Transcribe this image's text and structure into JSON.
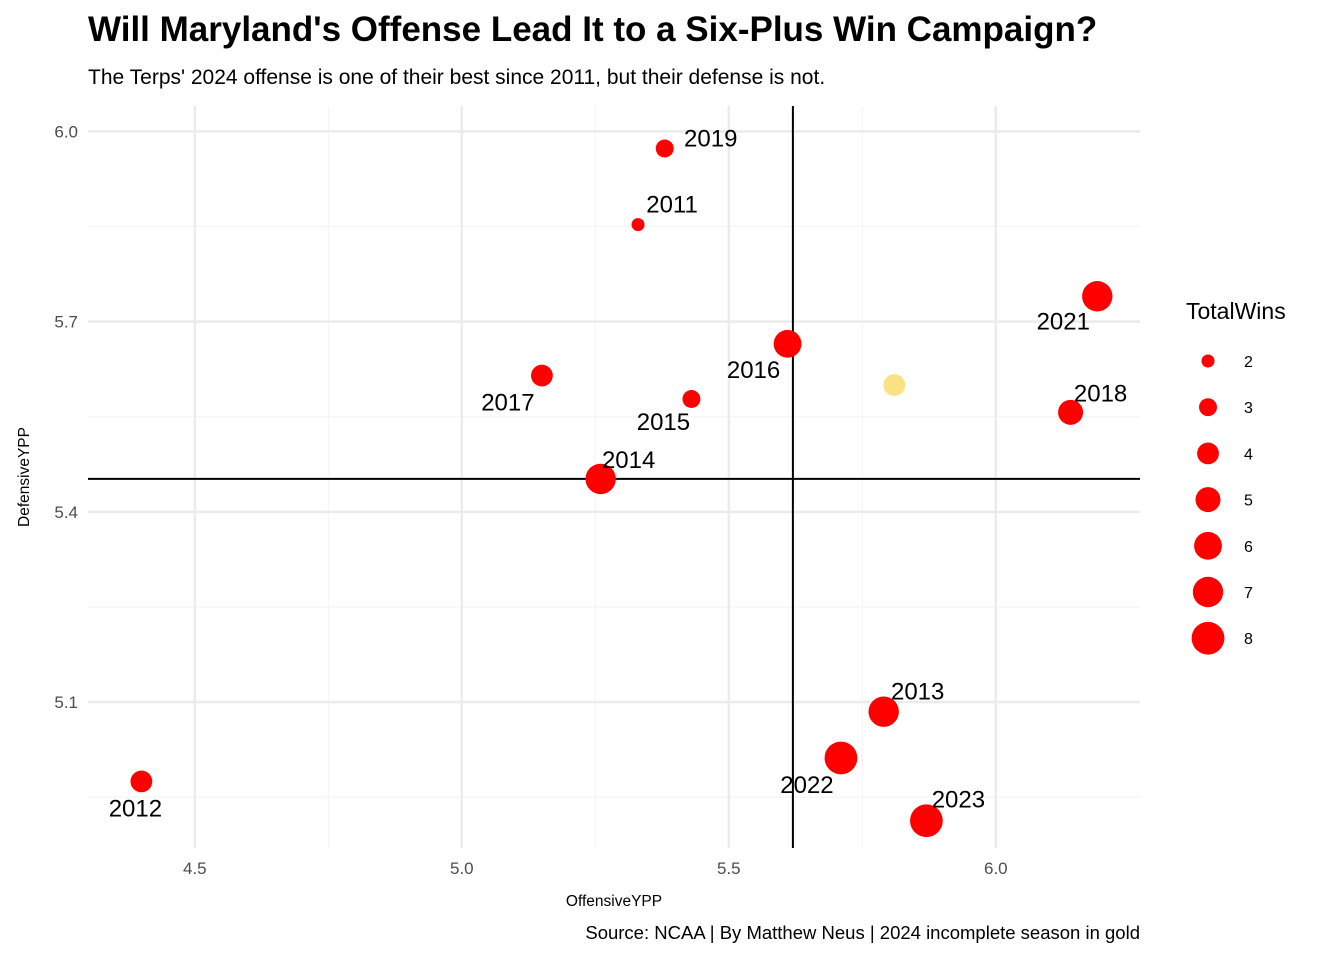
{
  "chart_data": {
    "type": "scatter",
    "title": "Will Maryland's Offense Lead It to a Six-Plus Win Campaign?",
    "subtitle": "The Terps' 2024 offense is one of their best since 2011, but their defense is not.",
    "caption": "Source: NCAA | By Matthew Neus | 2024 incomplete season in gold",
    "xlabel": "OffensiveYPP",
    "ylabel": "DefensiveYPP",
    "xlim": [
      4.3,
      6.27
    ],
    "ylim": [
      4.87,
      6.04
    ],
    "x_ticks": [
      4.5,
      5.0,
      5.5,
      6.0
    ],
    "x_tick_labels": [
      "4.5",
      "5.0",
      "5.5",
      "6.0"
    ],
    "y_ticks": [
      5.1,
      5.4,
      5.7,
      6.0
    ],
    "y_tick_labels": [
      "5.1",
      "5.4",
      "5.7",
      "6.0"
    ],
    "reference_lines": {
      "vertical_x": 5.62,
      "horizontal_y": 5.452
    },
    "grid": true,
    "colors": {
      "point": "#ff0000",
      "highlight": "#f8dc6e",
      "reference_line": "#000000",
      "grid": "#ebebeb"
    },
    "points": [
      {
        "label": "2011",
        "x": 5.33,
        "y": 5.853,
        "wins": 2
      },
      {
        "label": "2012",
        "x": 4.4,
        "y": 4.975,
        "wins": 4
      },
      {
        "label": "2013",
        "x": 5.79,
        "y": 5.085,
        "wins": 7
      },
      {
        "label": "2014",
        "x": 5.26,
        "y": 5.452,
        "wins": 7
      },
      {
        "label": "2015",
        "x": 5.43,
        "y": 5.578,
        "wins": 3
      },
      {
        "label": "2016",
        "x": 5.61,
        "y": 5.665,
        "wins": 6
      },
      {
        "label": "2017",
        "x": 5.15,
        "y": 5.615,
        "wins": 4
      },
      {
        "label": "2018",
        "x": 6.14,
        "y": 5.557,
        "wins": 5
      },
      {
        "label": "2019",
        "x": 5.38,
        "y": 5.973,
        "wins": 3
      },
      {
        "label": "2021",
        "x": 6.19,
        "y": 5.74,
        "wins": 7
      },
      {
        "label": "2022",
        "x": 5.71,
        "y": 5.012,
        "wins": 8
      },
      {
        "label": "2023",
        "x": 5.87,
        "y": 4.913,
        "wins": 8
      },
      {
        "label": "",
        "x": 5.81,
        "y": 5.6,
        "wins": 4,
        "highlight": true
      }
    ],
    "legend": {
      "title": "TotalWins",
      "position": "right",
      "values": [
        2,
        3,
        4,
        5,
        6,
        7,
        8
      ],
      "labels": [
        "2",
        "3",
        "4",
        "5",
        "6",
        "7",
        "8"
      ]
    }
  }
}
